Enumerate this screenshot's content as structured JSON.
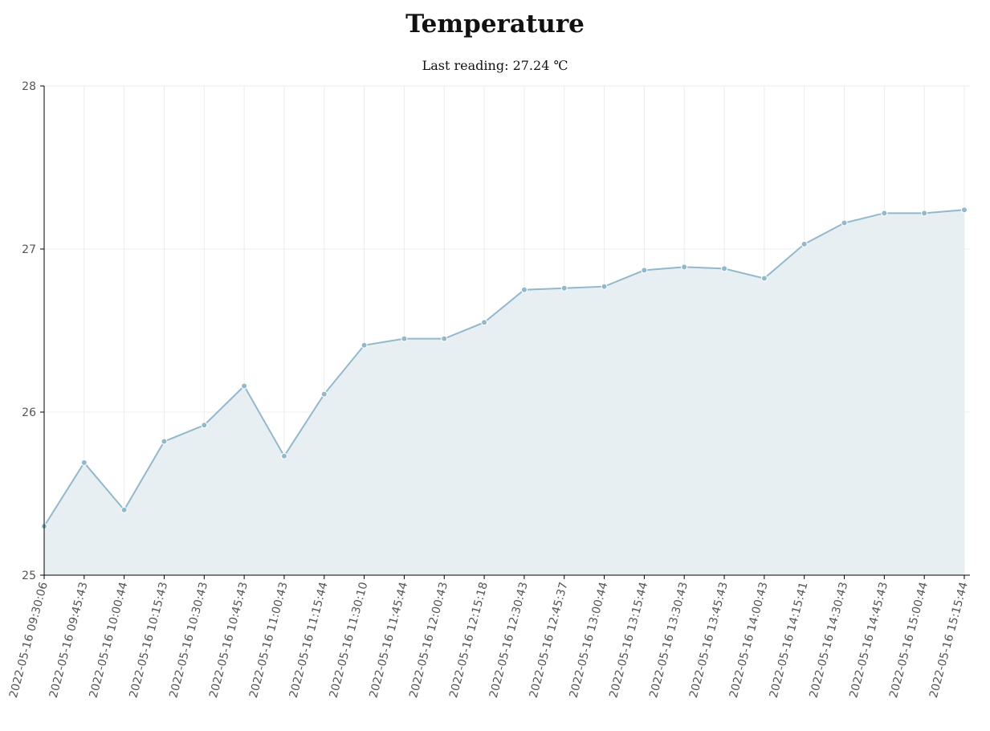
{
  "title": "Temperature",
  "subtitle": {
    "prefix": "Last reading:",
    "value": "27.24",
    "unit": "℃"
  },
  "colors": {
    "line": "#92b8cc",
    "area": "#e8eff3",
    "marker": "#92b8cc",
    "grid": "#ececec",
    "axis": "#000000"
  },
  "chart_data": {
    "type": "area",
    "title": "Temperature",
    "xlabel": "",
    "ylabel": "",
    "ylim": [
      25,
      28
    ],
    "yticks": [
      25,
      26,
      27,
      28
    ],
    "grid": true,
    "categories": [
      "2022-05-16 09:30:06",
      "2022-05-16 09:45:43",
      "2022-05-16 10:00:44",
      "2022-05-16 10:15:43",
      "2022-05-16 10:30:43",
      "2022-05-16 10:45:43",
      "2022-05-16 11:00:43",
      "2022-05-16 11:15:44",
      "2022-05-16 11:30:10",
      "2022-05-16 11:45:44",
      "2022-05-16 12:00:43",
      "2022-05-16 12:15:18",
      "2022-05-16 12:30:43",
      "2022-05-16 12:45:37",
      "2022-05-16 13:00:44",
      "2022-05-16 13:15:44",
      "2022-05-16 13:30:43",
      "2022-05-16 13:45:43",
      "2022-05-16 14:00:43",
      "2022-05-16 14:15:41",
      "2022-05-16 14:30:43",
      "2022-05-16 14:45:43",
      "2022-05-16 15:00:44",
      "2022-05-16 15:15:44"
    ],
    "values": [
      25.3,
      25.69,
      25.4,
      25.82,
      25.92,
      26.16,
      25.73,
      26.11,
      26.41,
      26.45,
      26.45,
      26.55,
      26.75,
      26.76,
      26.77,
      26.87,
      26.89,
      26.88,
      26.82,
      27.03,
      27.16,
      27.22,
      27.22,
      27.24
    ]
  }
}
